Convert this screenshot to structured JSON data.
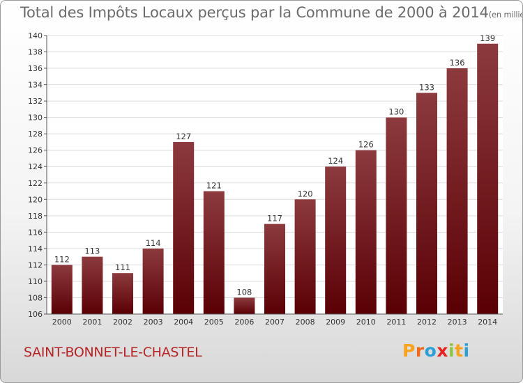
{
  "title": "Total des Impôts Locaux perçus par la Commune de 2000 à 2014",
  "title_unit": "(en milliers d'€)",
  "commune": "SAINT-BONNET-LE-CHASTEL",
  "logo": {
    "text": "Proxiti",
    "letters": [
      "P",
      "r",
      "o",
      "x",
      "i",
      "t",
      "i"
    ],
    "colors": [
      "#f7a31b",
      "#f06a1e",
      "#2a9fd8",
      "#e8231f",
      "#8dc63f",
      "#f7a31b",
      "#2a9fd8"
    ]
  },
  "colors": {
    "bar_top": "#8c3a3e",
    "bar_bottom": "#5a0005",
    "title": "#6b6b6b",
    "commune": "#b52525"
  },
  "chart_data": {
    "type": "bar",
    "categories": [
      "2000",
      "2001",
      "2002",
      "2003",
      "2004",
      "2005",
      "2006",
      "2007",
      "2008",
      "2009",
      "2010",
      "2011",
      "2012",
      "2013",
      "2014"
    ],
    "values": [
      112,
      113,
      111,
      114,
      127,
      121,
      108,
      117,
      120,
      124,
      126,
      130,
      133,
      136,
      139
    ],
    "ylim": [
      106,
      140
    ],
    "yticks": [
      106,
      108,
      110,
      112,
      114,
      116,
      118,
      120,
      122,
      124,
      126,
      128,
      130,
      132,
      134,
      136,
      138,
      140
    ],
    "grid": true,
    "data_labels": true
  }
}
